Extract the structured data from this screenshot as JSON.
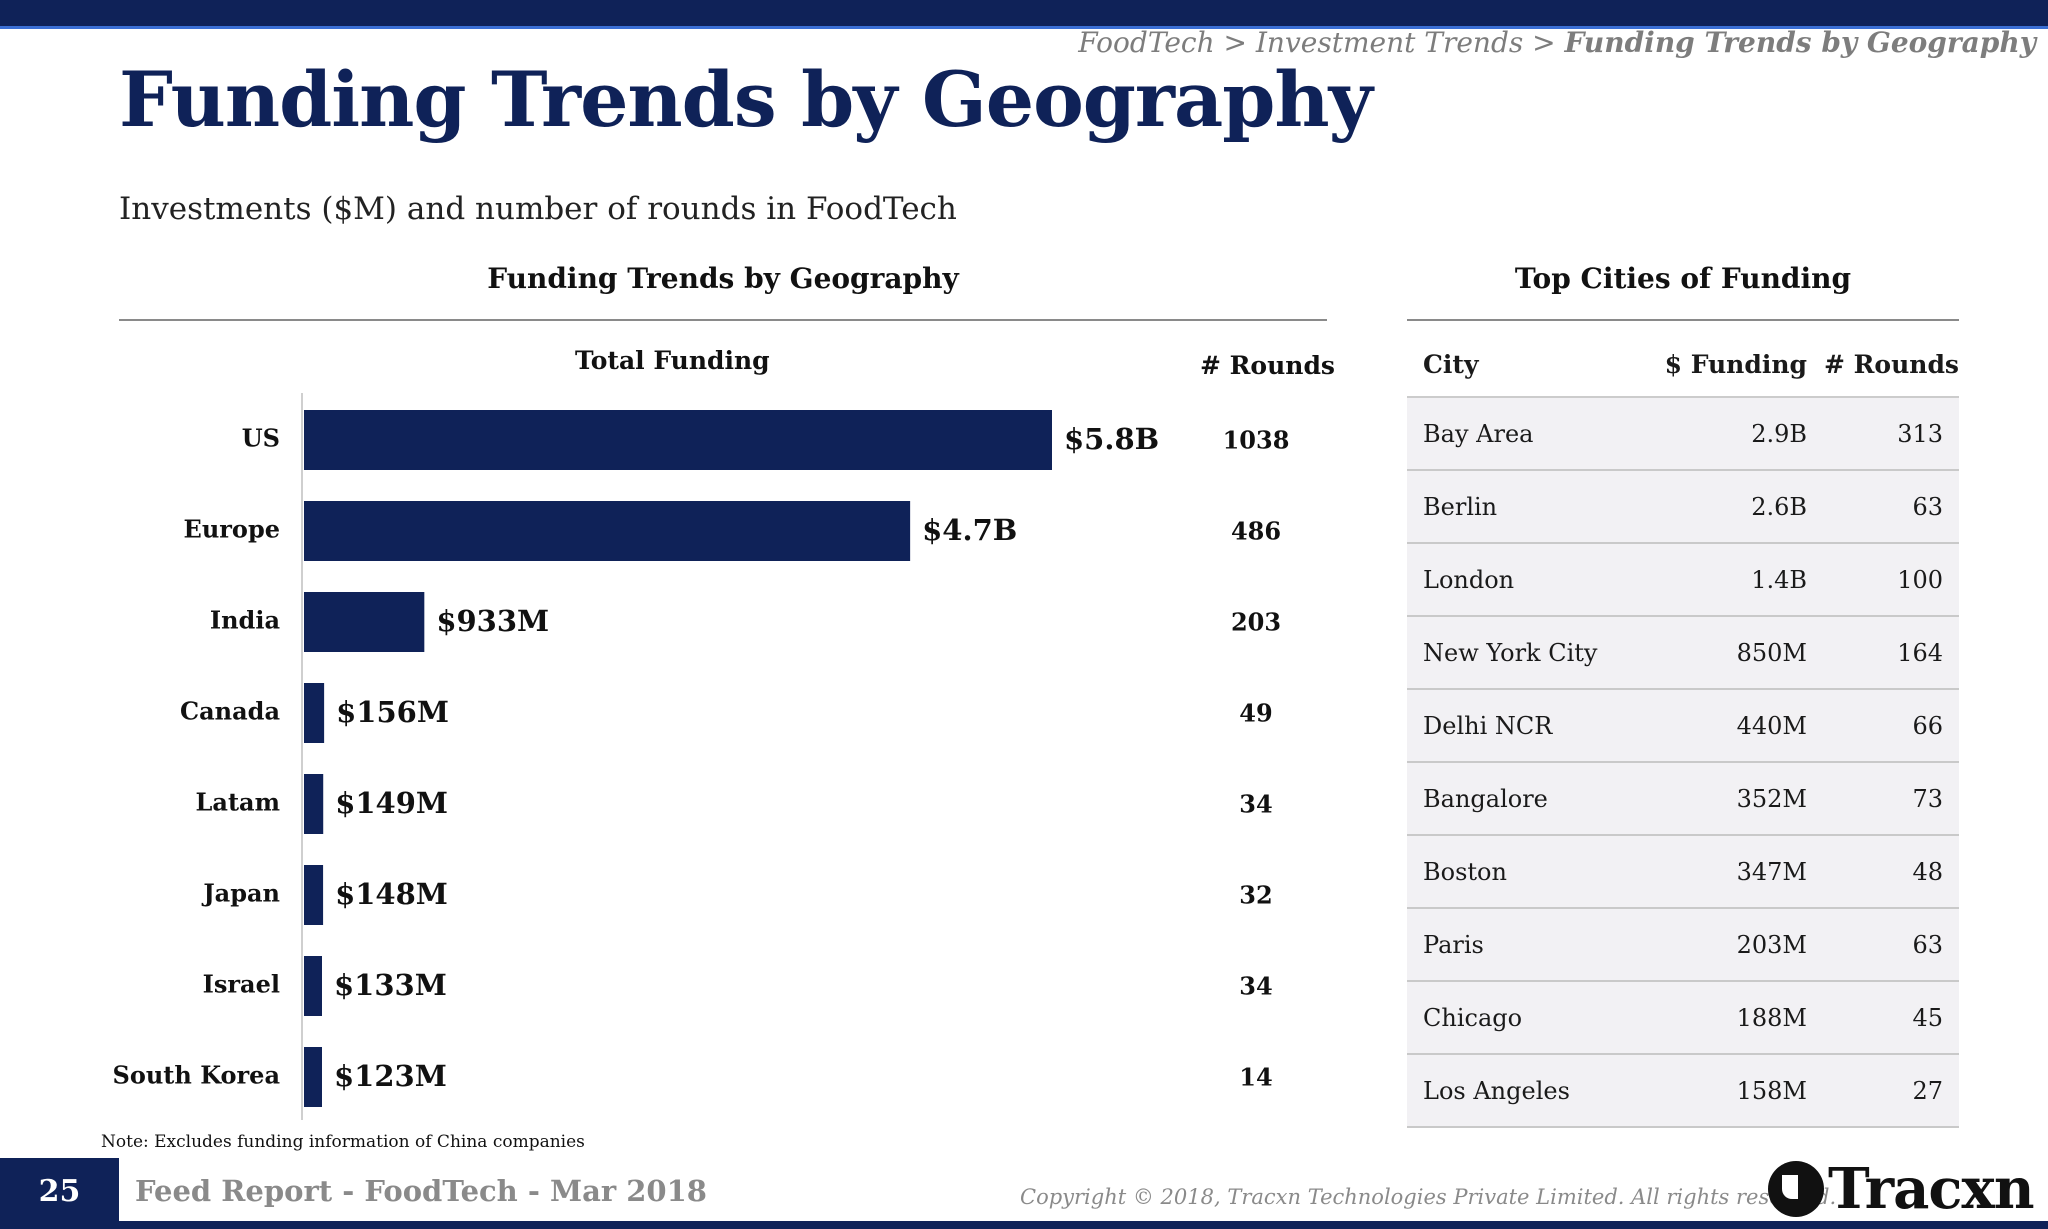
{
  "header": {
    "breadcrumb_path": "FoodTech > Investment Trends > ",
    "breadcrumb_current": "Funding Trends by Geography",
    "title": "Funding Trends by Geography",
    "subtitle": "Investments ($M) and number of rounds in FoodTech"
  },
  "left_section": {
    "title": "Funding Trends by Geography",
    "col_total": "Total Funding",
    "col_rounds": "# Rounds"
  },
  "chart_data": {
    "type": "bar",
    "orientation": "horizontal",
    "title": "Funding Trends by Geography",
    "xlabel": "Total Funding",
    "categories": [
      "US",
      "Europe",
      "India",
      "Canada",
      "Latam",
      "Japan",
      "Israel",
      "South Korea"
    ],
    "values": [
      5800,
      4700,
      933,
      156,
      149,
      148,
      133,
      123
    ],
    "value_labels": [
      "$5.8B",
      "$4.7B",
      "$933M",
      "$156M",
      "$149M",
      "$148M",
      "$133M",
      "$123M"
    ],
    "rounds": [
      1038,
      486,
      203,
      49,
      34,
      32,
      34,
      14
    ],
    "units": "$M",
    "xlim": [
      0,
      5800
    ]
  },
  "right_section": {
    "title": "Top Cities of Funding",
    "headers": [
      "City",
      "$ Funding",
      "# Rounds"
    ],
    "rows": [
      {
        "city": "Bay Area",
        "funding": "2.9B",
        "rounds": "313"
      },
      {
        "city": "Berlin",
        "funding": "2.6B",
        "rounds": "63"
      },
      {
        "city": "London",
        "funding": "1.4B",
        "rounds": "100"
      },
      {
        "city": "New York City",
        "funding": "850M",
        "rounds": "164"
      },
      {
        "city": "Delhi NCR",
        "funding": "440M",
        "rounds": "66"
      },
      {
        "city": "Bangalore",
        "funding": "352M",
        "rounds": "73"
      },
      {
        "city": "Boston",
        "funding": "347M",
        "rounds": "48"
      },
      {
        "city": "Paris",
        "funding": "203M",
        "rounds": "63"
      },
      {
        "city": "Chicago",
        "funding": "188M",
        "rounds": "45"
      },
      {
        "city": "Los Angeles",
        "funding": "158M",
        "rounds": "27"
      }
    ]
  },
  "note": "Note: Excludes funding information of China companies",
  "footer": {
    "page_number": "25",
    "report": "Feed Report - FoodTech - Mar 2018",
    "copyright": "Copyright © 2018, Tracxn Technologies Private Limited. All rights reserved.",
    "logo_text": "Tracxn"
  },
  "colors": {
    "brand_navy": "#0f2258",
    "accent_blue": "#3b6fd4",
    "table_row_bg": "#f2f1f4",
    "muted_gray": "#8a8a8a"
  }
}
